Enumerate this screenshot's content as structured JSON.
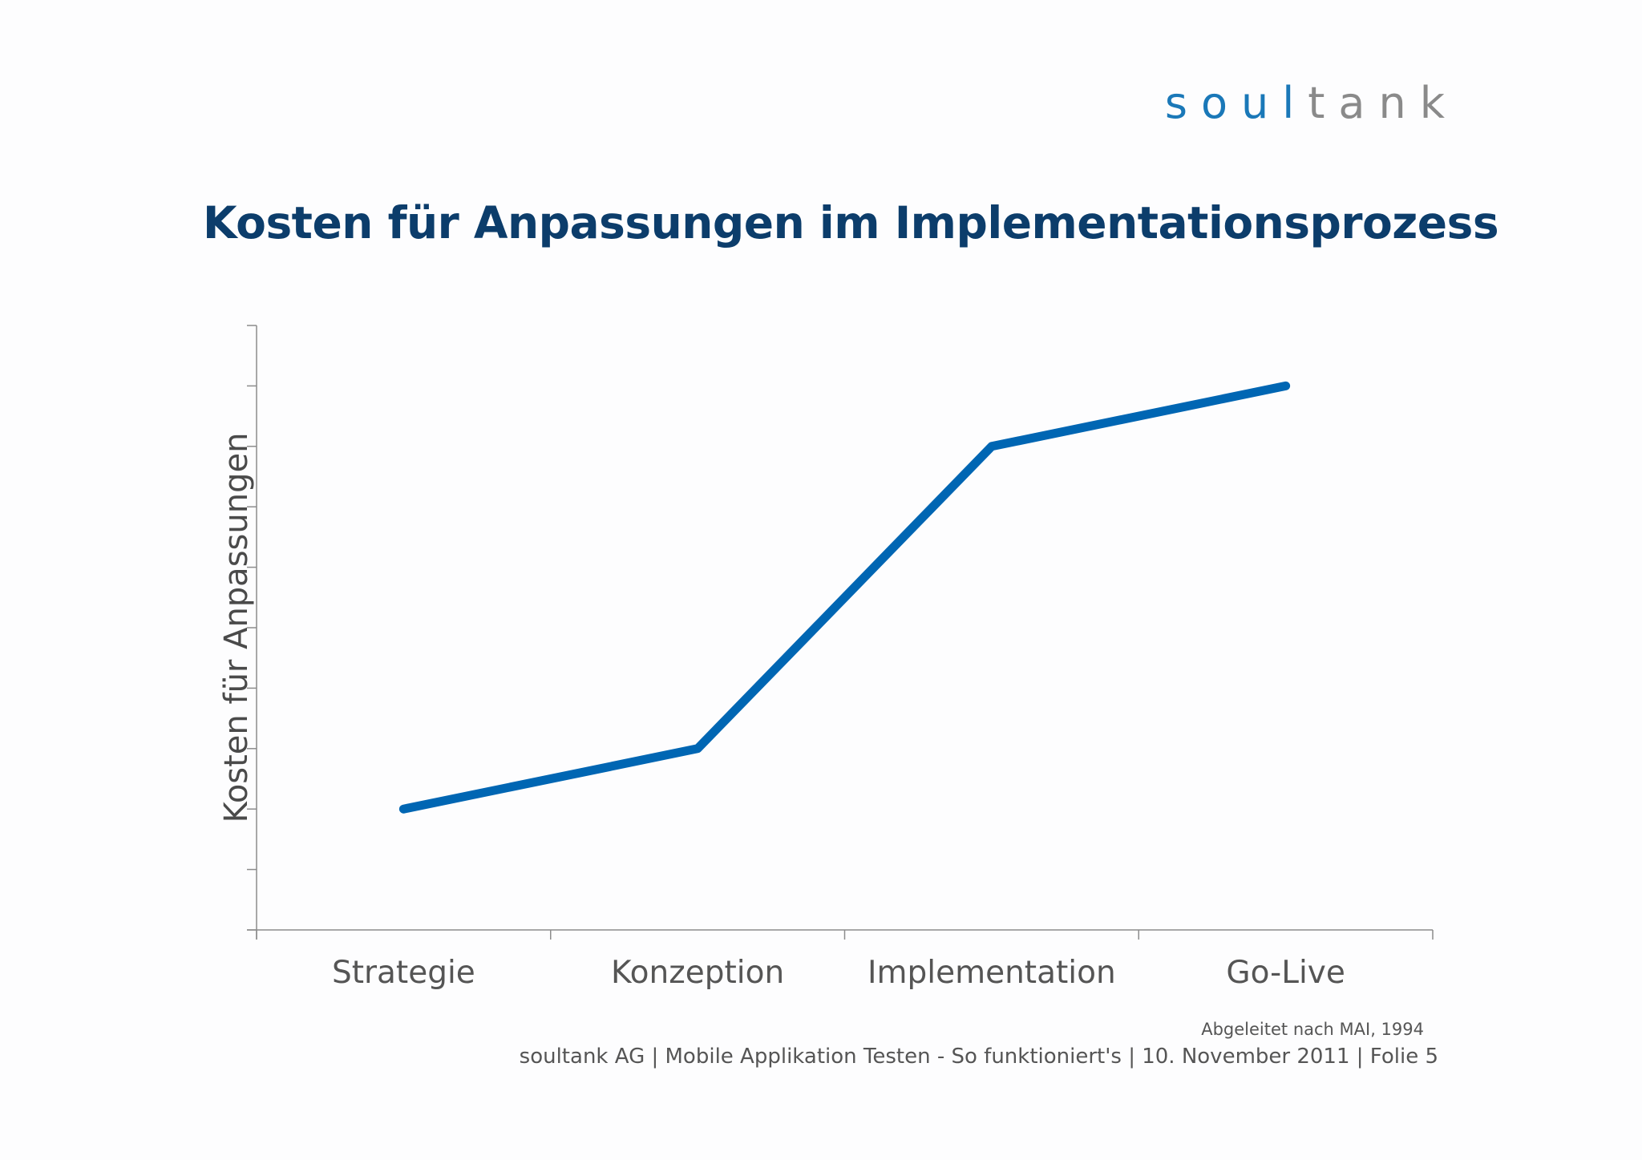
{
  "logo": {
    "part1": "soul",
    "part2": "tank"
  },
  "title": "Kosten für Anpassungen im Implementationsprozess",
  "source_note": "Abgeleitet nach MAI, 1994",
  "footer": "soultank AG | Mobile Applikation Testen - So funktioniert's | 10. November 2011 | Folie 5",
  "colors": {
    "line": "#0066b3",
    "title": "#0c3d6b",
    "axis": "#8c8c8c",
    "text": "#555555"
  },
  "chart_data": {
    "type": "line",
    "title": "Kosten für Anpassungen im Implementationsprozess",
    "xlabel": "",
    "ylabel": "Kosten für Anpassungen",
    "categories": [
      "Strategie",
      "Konzeption",
      "Implementation",
      "Go-Live"
    ],
    "series": [
      {
        "values": [
          2,
          3,
          8,
          9
        ]
      }
    ],
    "ylim": [
      0,
      10
    ],
    "y_ticks_count": 11,
    "y_tick_labels_shown": false,
    "grid": false,
    "legend": "none"
  }
}
